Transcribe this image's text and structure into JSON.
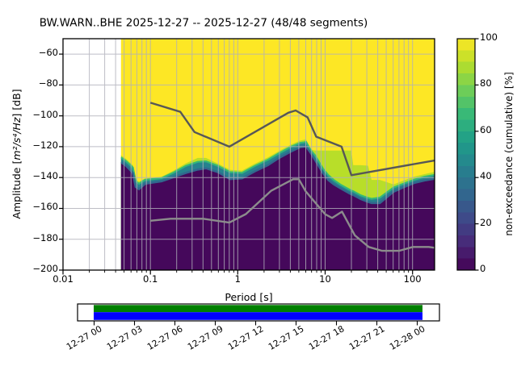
{
  "title": "BW.WARN..BHE   2025-12-27 -- 2025-12-27  (48/48 segments)",
  "station": {
    "network": "BW",
    "station": "WARN",
    "channel": "BHE",
    "date_range": "2025-12-27 -- 2025-12-27",
    "segments": "48/48"
  },
  "axes": {
    "x": {
      "label": "Period [s]",
      "scale": "log",
      "min": 0.01,
      "max": 179,
      "tick_values": [
        0.01,
        0.1,
        1,
        10,
        100
      ],
      "tick_labels": [
        "0.01",
        "0.1",
        "1",
        "10",
        "100"
      ]
    },
    "y": {
      "label_prefix": "Amplitude [",
      "label_math": "m²/s⁴/Hz",
      "label_suffix": "] [dB]",
      "min": -200,
      "max": -50,
      "tick_values": [
        -60,
        -80,
        -100,
        -120,
        -140,
        -160,
        -180,
        -200
      ],
      "tick_labels": [
        "−60",
        "−80",
        "−100",
        "−120",
        "−140",
        "−160",
        "−180",
        "−200"
      ]
    }
  },
  "colorbar": {
    "label": "non-exceedance (cumulative) [%]",
    "min": 0,
    "max": 100,
    "tick_values": [
      0,
      20,
      40,
      60,
      80,
      100
    ],
    "tick_labels": [
      "0",
      "20",
      "40",
      "60",
      "80",
      "100"
    ],
    "colormap": "viridis",
    "gradient_stops": [
      "#440154",
      "#482878",
      "#3e4989",
      "#31688e",
      "#26828e",
      "#1f9e89",
      "#35b779",
      "#6ece58",
      "#b5de2b",
      "#fde725"
    ]
  },
  "chart_data": {
    "type": "heatmap",
    "title": "BW.WARN..BHE   2025-12-27 -- 2025-12-27  (48/48 segments)",
    "xlabel": "Period [s]",
    "ylabel": "Amplitude [m²/s⁴/Hz] [dB]",
    "zlabel": "non-exceedance (cumulative) [%]",
    "xlim_s": [
      0.01,
      179
    ],
    "ylim_db": [
      -200,
      -50
    ],
    "zlim_pct": [
      0,
      100
    ],
    "data_period_start_s": 0.046,
    "grid": true,
    "bands_note": "Cumulative PPSD: boundary curves (period s -> dB) separating colour bands; yellow=100% above green_top, light-green between green_top and teal_top, teal between teal_top and dark_top, dark purple (~0%) below dark_top.",
    "bands": {
      "periods_s": [
        0.046,
        0.053,
        0.063,
        0.068,
        0.074,
        0.087,
        0.134,
        0.184,
        0.254,
        0.348,
        0.433,
        0.595,
        0.817,
        1.12,
        1.57,
        2.21,
        2.92,
        4.1,
        5.2,
        6.05,
        6.87,
        7.65,
        8.53,
        9.5,
        10.9,
        12.5,
        14.9,
        19.2,
        19.9,
        21.0,
        25.5,
        31.0,
        34.0,
        42.3,
        60.7,
        80.3,
        106,
        137,
        179
      ],
      "green_top_db": [
        -125.5,
        -128,
        -132,
        -141,
        -142.5,
        -140.5,
        -139.5,
        -135.5,
        -130.8,
        -127.3,
        -127.3,
        -131,
        -135,
        -135.5,
        -131,
        -127,
        -123,
        -118.5,
        -116,
        -115.3,
        -121.8,
        -122.5,
        -122.5,
        -122.5,
        -122.5,
        -122.5,
        -122.5,
        -122.5,
        -122.5,
        -132,
        -132,
        -132.3,
        -141.5,
        -141.5,
        -144.5,
        -141.8,
        -139.3,
        -137.8,
        -136.3
      ],
      "teal_top_db": [
        -127,
        -129.5,
        -133.5,
        -142.5,
        -144,
        -141.5,
        -140.4,
        -136.8,
        -132.5,
        -129.8,
        -129.5,
        -132.5,
        -136.5,
        -137,
        -132.5,
        -128.5,
        -124.5,
        -120,
        -117.5,
        -117,
        -122.5,
        -125.5,
        -130,
        -134.5,
        -138.5,
        -141.5,
        -144.5,
        -148,
        -148.4,
        -148.9,
        -151.5,
        -153.2,
        -153.8,
        -153,
        -146.5,
        -143.8,
        -141.3,
        -139.5,
        -138.3
      ],
      "dark_top_db": [
        -130,
        -132.5,
        -137,
        -146,
        -147.5,
        -144,
        -142.4,
        -139.8,
        -137,
        -134.8,
        -134,
        -136.5,
        -141,
        -140.5,
        -136,
        -132,
        -127.5,
        -123,
        -120.3,
        -119.8,
        -124.2,
        -128.5,
        -132.9,
        -137.3,
        -141.6,
        -144.3,
        -146.9,
        -150.4,
        -150.8,
        -151.3,
        -153.9,
        -155.8,
        -156.5,
        -156.5,
        -149.2,
        -146.1,
        -143.4,
        -141.9,
        -140.8
      ]
    },
    "noise_models": {
      "nhnm": {
        "name": "Peterson New High Noise Model",
        "periods_s": [
          0.1,
          0.22,
          0.32,
          0.8,
          3.8,
          4.6,
          6.3,
          7.9,
          15.4,
          20.0,
          179
        ],
        "db": [
          -91.5,
          -97.4,
          -110.5,
          -120.0,
          -98.0,
          -96.5,
          -101.0,
          -113.5,
          -120.0,
          -138.5,
          -128.9
        ]
      },
      "nlnm": {
        "name": "Peterson New Low Noise Model",
        "periods_s": [
          0.1,
          0.17,
          0.4,
          0.8,
          1.24,
          2.4,
          4.3,
          5.0,
          6.0,
          10.0,
          12.0,
          15.6,
          21.9,
          31.6,
          45.0,
          70.0,
          101.0,
          154.0,
          179
        ],
        "db": [
          -168.0,
          -166.7,
          -166.7,
          -169.2,
          -163.7,
          -148.6,
          -141.1,
          -141.1,
          -149.0,
          -163.8,
          -166.2,
          -162.1,
          -177.5,
          -185.0,
          -187.5,
          -187.5,
          -185.0,
          -185.0,
          -185.5
        ]
      }
    },
    "colors": {
      "yellow_100pct": "#fde725",
      "light_green": "#b8de29",
      "teal": "#26828e",
      "blue_edge": "#31688e",
      "green_edge": "#35b779",
      "dark_purple_0pct": "#45085b",
      "nhnm_line": "#575757",
      "nlnm_line": "#8c8c8c",
      "gridline": "#b0b0ba"
    }
  },
  "timeline": {
    "tick_labels": [
      "12-27 00",
      "12-27 03",
      "12-27 06",
      "12-27 09",
      "12-27 12",
      "12-27 15",
      "12-27 18",
      "12-27 21",
      "12-28 00"
    ],
    "coverage_color_top": "#008000",
    "coverage_color_bottom": "#0000ff",
    "box_color": "#ffffff"
  }
}
